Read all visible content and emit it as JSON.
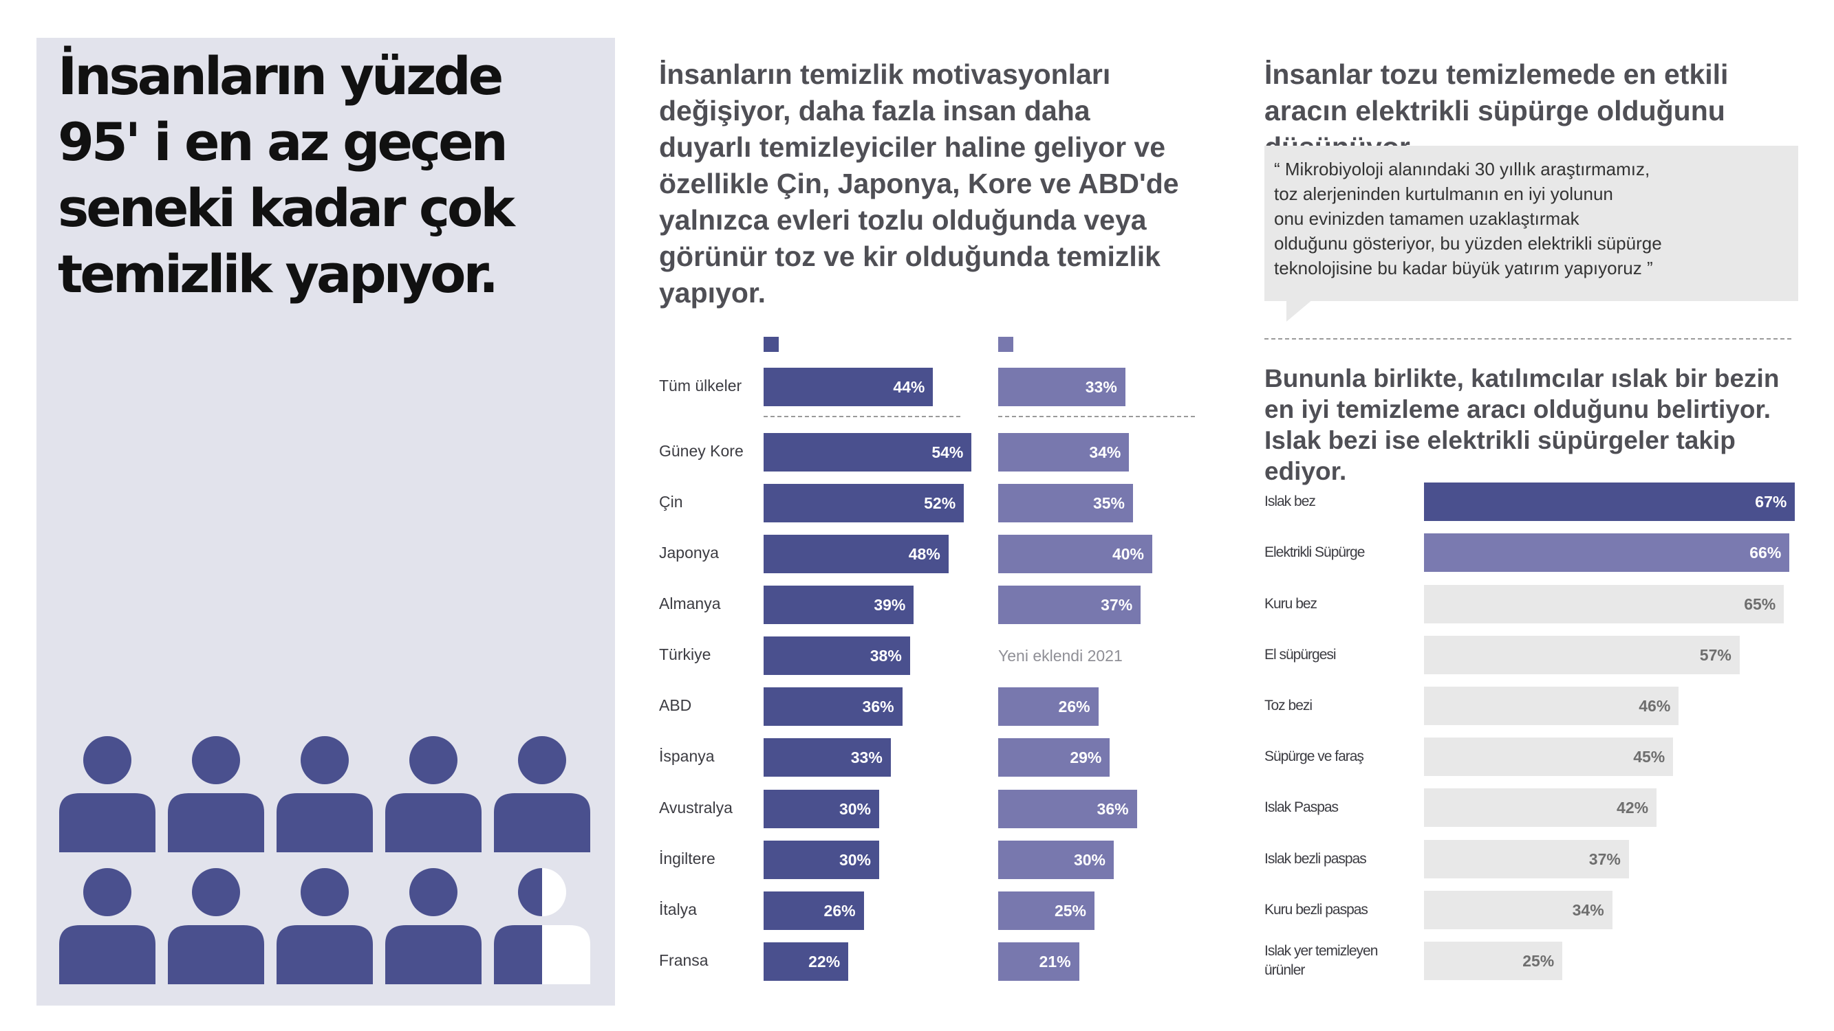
{
  "left": {
    "title": "İnsanların yüzde 95' i en az geçen seneki kadar çok temizlik yapıyor.",
    "icon": "person-icon",
    "people_icon_count": 9.5
  },
  "middle": {
    "title": "İnsanların temizlik motivasyonları değişiyor, daha fazla insan daha duyarlı temizleyiciler haline geliyor ve özellikle Çin, Japonya, Kore ve ABD'de yalnızca evleri tozlu olduğunda veya görünür toz ve kir olduğunda temizlik yapıyor.",
    "new_note": "Yeni eklendi 2021"
  },
  "right": {
    "title": "İnsanlar tozu temizlemede en etkili aracın elektrikli süpürge olduğunu düşünüyor.",
    "quote": "“ Mikrobiyoloji alanındaki 30 yıllık araştırmamız,\n   toz alerjeninden kurtulmanın en iyi yolunun\n   onu evinizden tamamen uzaklaştırmak\n   olduğunu gösteriyor, bu yüzden elektrikli süpürge\n   teknolojisine bu kadar büyük yatırım yapıyoruz ”",
    "subtitle": "Bununla birlikte, katılımcılar ıslak bir bezin en iyi temizleme aracı olduğunu belirtiyor. Islak bezi ise elektrikli süpürgeler takip ediyor."
  },
  "colors": {
    "series1": "#4a508e",
    "series2": "#7878ae",
    "top_bar": "#4a508e",
    "second_bar": "#7a7ab0",
    "grey_bar": "#e8e8e8",
    "panel": "#e2e3ec"
  },
  "chart_data": [
    {
      "type": "bar",
      "orientation": "horizontal",
      "categories": [
        "Tüm ülkeler",
        "Güney Kore",
        "Çin",
        "Japonya",
        "Almanya",
        "Türkiye",
        "ABD",
        "İspanya",
        "Avustralya",
        "İngiltere",
        "İtalya",
        "Fransa"
      ],
      "series": [
        {
          "values": [
            44,
            54,
            52,
            48,
            39,
            38,
            36,
            33,
            30,
            30,
            26,
            22
          ]
        },
        {
          "values": [
            33,
            34,
            35,
            40,
            37,
            null,
            26,
            29,
            36,
            30,
            25,
            21
          ]
        }
      ],
      "value_format": "percent"
    },
    {
      "type": "bar",
      "orientation": "horizontal",
      "categories": [
        "Islak bez",
        "Elektrikli Süpürge",
        "Kuru bez",
        "El süpürgesi",
        "Toz bezi",
        "Süpürge ve faraş",
        "Islak Paspas",
        "Islak bezli paspas",
        "Kuru bezli paspas",
        "Islak yer temizleyen ürünler"
      ],
      "values": [
        67,
        66,
        65,
        57,
        46,
        45,
        42,
        37,
        34,
        25
      ],
      "value_format": "percent"
    }
  ]
}
